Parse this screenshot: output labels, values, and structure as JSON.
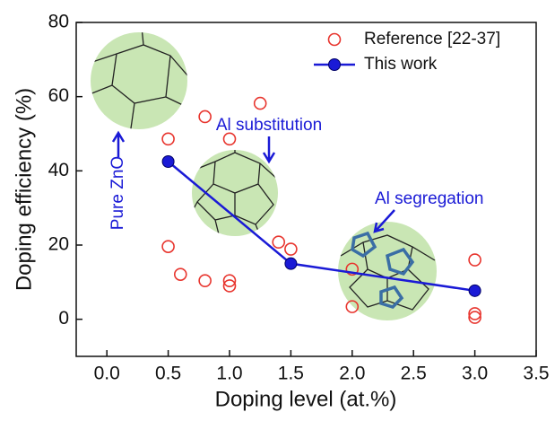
{
  "chart_data": {
    "type": "scatter",
    "xlabel": "Doping level (at.%)",
    "ylabel": "Doping efficiency (%)",
    "xlim": [
      -0.25,
      3.5
    ],
    "ylim": [
      -10,
      80
    ],
    "xticks": [
      {
        "value": 0,
        "label": "0.0"
      },
      0.5,
      {
        "value": 1,
        "label": "1.0"
      },
      1.5,
      {
        "value": 2,
        "label": "2.0"
      },
      2.5,
      {
        "value": 3,
        "label": "3.0"
      },
      3.5
    ],
    "yticks": [
      0,
      20,
      40,
      60,
      80
    ],
    "legend": "upper right",
    "series": [
      {
        "name": "Reference [22-37]",
        "color": "#e8352e",
        "mode": "markers",
        "x": [
          0.5,
          0.5,
          0.6,
          0.8,
          0.8,
          1.0,
          1.0,
          1.0,
          1.25,
          1.4,
          1.5,
          2.0,
          2.0,
          3.0,
          3.0,
          3.0
        ],
        "values": [
          48.6,
          19.6,
          12.1,
          54.6,
          10.4,
          48.6,
          10.4,
          9.0,
          58.2,
          20.8,
          18.9,
          13.5,
          3.4,
          16,
          1.5,
          0.5
        ]
      },
      {
        "name": "This work",
        "color": "#1a1ad6",
        "mode": "line-markers",
        "x": [
          0.5,
          1.5,
          3.0
        ],
        "values": [
          42.5,
          15,
          7.7
        ]
      }
    ],
    "annotations": [
      "Al substitution",
      "Al segregation",
      "Pure ZnO"
    ]
  }
}
